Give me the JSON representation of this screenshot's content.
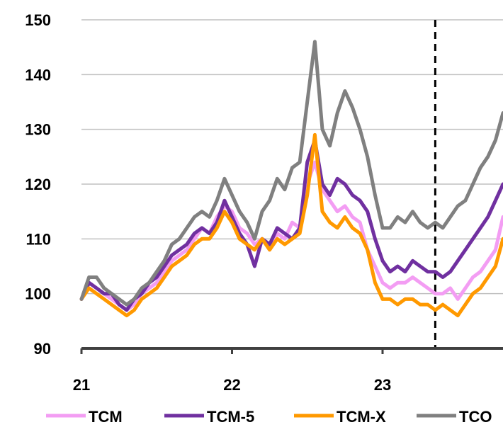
{
  "chart_data": {
    "type": "line",
    "title": "",
    "xlabel": "",
    "ylabel": "",
    "ylim": [
      90,
      150
    ],
    "yticks": [
      90,
      100,
      110,
      120,
      130,
      140,
      150
    ],
    "xlim": [
      21,
      23.8
    ],
    "xticks": [
      21,
      22,
      23
    ],
    "xtick_labels": [
      "21",
      "22",
      "23"
    ],
    "grid": "horizontal",
    "legend_position": "bottom",
    "marker_line_x": 23.35,
    "series": [
      {
        "name": "TCM",
        "color": "#f39df3",
        "points": [
          [
            21.0,
            99
          ],
          [
            21.05,
            102
          ],
          [
            21.1,
            101
          ],
          [
            21.15,
            100
          ],
          [
            21.2,
            99
          ],
          [
            21.25,
            98
          ],
          [
            21.3,
            97
          ],
          [
            21.35,
            98
          ],
          [
            21.4,
            100
          ],
          [
            21.45,
            101
          ],
          [
            21.5,
            102
          ],
          [
            21.55,
            104
          ],
          [
            21.6,
            106
          ],
          [
            21.65,
            107
          ],
          [
            21.7,
            108
          ],
          [
            21.75,
            110
          ],
          [
            21.8,
            112
          ],
          [
            21.85,
            111
          ],
          [
            21.9,
            114
          ],
          [
            21.95,
            116
          ],
          [
            22.0,
            115
          ],
          [
            22.05,
            112
          ],
          [
            22.1,
            111
          ],
          [
            22.15,
            109
          ],
          [
            22.2,
            110
          ],
          [
            22.25,
            108
          ],
          [
            22.3,
            111
          ],
          [
            22.35,
            110
          ],
          [
            22.4,
            113
          ],
          [
            22.45,
            112
          ],
          [
            22.5,
            120
          ],
          [
            22.55,
            124
          ],
          [
            22.6,
            119
          ],
          [
            22.65,
            117
          ],
          [
            22.7,
            115
          ],
          [
            22.75,
            116
          ],
          [
            22.8,
            114
          ],
          [
            22.85,
            113
          ],
          [
            22.9,
            108
          ],
          [
            22.95,
            105
          ],
          [
            23.0,
            102
          ],
          [
            23.05,
            101
          ],
          [
            23.1,
            102
          ],
          [
            23.15,
            102
          ],
          [
            23.2,
            103
          ],
          [
            23.25,
            102
          ],
          [
            23.3,
            101
          ],
          [
            23.35,
            100
          ],
          [
            23.4,
            100
          ],
          [
            23.45,
            101
          ],
          [
            23.5,
            99
          ],
          [
            23.55,
            101
          ],
          [
            23.6,
            103
          ],
          [
            23.65,
            104
          ],
          [
            23.7,
            106
          ],
          [
            23.75,
            108
          ],
          [
            23.8,
            114
          ]
        ]
      },
      {
        "name": "TCM-5",
        "color": "#7030a0",
        "points": [
          [
            21.0,
            99
          ],
          [
            21.05,
            102
          ],
          [
            21.1,
            101
          ],
          [
            21.15,
            100
          ],
          [
            21.2,
            100
          ],
          [
            21.25,
            98
          ],
          [
            21.3,
            97
          ],
          [
            21.35,
            99
          ],
          [
            21.4,
            100
          ],
          [
            21.45,
            102
          ],
          [
            21.5,
            103
          ],
          [
            21.55,
            105
          ],
          [
            21.6,
            107
          ],
          [
            21.65,
            108
          ],
          [
            21.7,
            109
          ],
          [
            21.75,
            111
          ],
          [
            21.8,
            112
          ],
          [
            21.85,
            111
          ],
          [
            21.9,
            113
          ],
          [
            21.95,
            117
          ],
          [
            22.0,
            114
          ],
          [
            22.05,
            111
          ],
          [
            22.1,
            109
          ],
          [
            22.15,
            105
          ],
          [
            22.2,
            110
          ],
          [
            22.25,
            109
          ],
          [
            22.3,
            112
          ],
          [
            22.35,
            111
          ],
          [
            22.4,
            110
          ],
          [
            22.45,
            112
          ],
          [
            22.5,
            124
          ],
          [
            22.55,
            128
          ],
          [
            22.6,
            120
          ],
          [
            22.65,
            118
          ],
          [
            22.7,
            121
          ],
          [
            22.75,
            120
          ],
          [
            22.8,
            118
          ],
          [
            22.85,
            117
          ],
          [
            22.9,
            115
          ],
          [
            22.95,
            110
          ],
          [
            23.0,
            106
          ],
          [
            23.05,
            104
          ],
          [
            23.1,
            105
          ],
          [
            23.15,
            104
          ],
          [
            23.2,
            106
          ],
          [
            23.25,
            105
          ],
          [
            23.3,
            104
          ],
          [
            23.35,
            104
          ],
          [
            23.4,
            103
          ],
          [
            23.45,
            104
          ],
          [
            23.5,
            106
          ],
          [
            23.55,
            108
          ],
          [
            23.6,
            110
          ],
          [
            23.65,
            112
          ],
          [
            23.7,
            114
          ],
          [
            23.75,
            117
          ],
          [
            23.8,
            120
          ]
        ]
      },
      {
        "name": "TCM-X",
        "color": "#ff9900",
        "points": [
          [
            21.0,
            99
          ],
          [
            21.05,
            101
          ],
          [
            21.1,
            100
          ],
          [
            21.15,
            99
          ],
          [
            21.2,
            98
          ],
          [
            21.25,
            97
          ],
          [
            21.3,
            96
          ],
          [
            21.35,
            97
          ],
          [
            21.4,
            99
          ],
          [
            21.45,
            100
          ],
          [
            21.5,
            101
          ],
          [
            21.55,
            103
          ],
          [
            21.6,
            105
          ],
          [
            21.65,
            106
          ],
          [
            21.7,
            107
          ],
          [
            21.75,
            109
          ],
          [
            21.8,
            110
          ],
          [
            21.85,
            110
          ],
          [
            21.9,
            112
          ],
          [
            21.95,
            115
          ],
          [
            22.0,
            113
          ],
          [
            22.05,
            110
          ],
          [
            22.1,
            109
          ],
          [
            22.15,
            108
          ],
          [
            22.2,
            110
          ],
          [
            22.25,
            108
          ],
          [
            22.3,
            110
          ],
          [
            22.35,
            109
          ],
          [
            22.4,
            110
          ],
          [
            22.45,
            111
          ],
          [
            22.5,
            118
          ],
          [
            22.55,
            129
          ],
          [
            22.6,
            115
          ],
          [
            22.65,
            113
          ],
          [
            22.7,
            112
          ],
          [
            22.75,
            114
          ],
          [
            22.8,
            112
          ],
          [
            22.85,
            111
          ],
          [
            22.9,
            108
          ],
          [
            22.95,
            102
          ],
          [
            23.0,
            99
          ],
          [
            23.05,
            99
          ],
          [
            23.1,
            98
          ],
          [
            23.15,
            99
          ],
          [
            23.2,
            99
          ],
          [
            23.25,
            98
          ],
          [
            23.3,
            98
          ],
          [
            23.35,
            97
          ],
          [
            23.4,
            98
          ],
          [
            23.45,
            97
          ],
          [
            23.5,
            96
          ],
          [
            23.55,
            98
          ],
          [
            23.6,
            100
          ],
          [
            23.65,
            101
          ],
          [
            23.7,
            103
          ],
          [
            23.75,
            105
          ],
          [
            23.8,
            110
          ]
        ]
      },
      {
        "name": "TCO",
        "color": "#808080",
        "points": [
          [
            21.0,
            99
          ],
          [
            21.05,
            103
          ],
          [
            21.1,
            103
          ],
          [
            21.15,
            101
          ],
          [
            21.2,
            100
          ],
          [
            21.25,
            99
          ],
          [
            21.3,
            98
          ],
          [
            21.35,
            99
          ],
          [
            21.4,
            101
          ],
          [
            21.45,
            102
          ],
          [
            21.5,
            104
          ],
          [
            21.55,
            106
          ],
          [
            21.6,
            109
          ],
          [
            21.65,
            110
          ],
          [
            21.7,
            112
          ],
          [
            21.75,
            114
          ],
          [
            21.8,
            115
          ],
          [
            21.85,
            114
          ],
          [
            21.9,
            117
          ],
          [
            21.95,
            121
          ],
          [
            22.0,
            118
          ],
          [
            22.05,
            115
          ],
          [
            22.1,
            113
          ],
          [
            22.15,
            110
          ],
          [
            22.2,
            115
          ],
          [
            22.25,
            117
          ],
          [
            22.3,
            121
          ],
          [
            22.35,
            119
          ],
          [
            22.4,
            123
          ],
          [
            22.45,
            124
          ],
          [
            22.5,
            135
          ],
          [
            22.55,
            146
          ],
          [
            22.6,
            130
          ],
          [
            22.65,
            127
          ],
          [
            22.7,
            133
          ],
          [
            22.75,
            137
          ],
          [
            22.8,
            134
          ],
          [
            22.85,
            130
          ],
          [
            22.9,
            125
          ],
          [
            22.95,
            118
          ],
          [
            23.0,
            112
          ],
          [
            23.05,
            112
          ],
          [
            23.1,
            114
          ],
          [
            23.15,
            113
          ],
          [
            23.2,
            115
          ],
          [
            23.25,
            113
          ],
          [
            23.3,
            112
          ],
          [
            23.35,
            113
          ],
          [
            23.4,
            112
          ],
          [
            23.45,
            114
          ],
          [
            23.5,
            116
          ],
          [
            23.55,
            117
          ],
          [
            23.6,
            120
          ],
          [
            23.65,
            123
          ],
          [
            23.7,
            125
          ],
          [
            23.75,
            128
          ],
          [
            23.8,
            133
          ]
        ]
      }
    ]
  }
}
